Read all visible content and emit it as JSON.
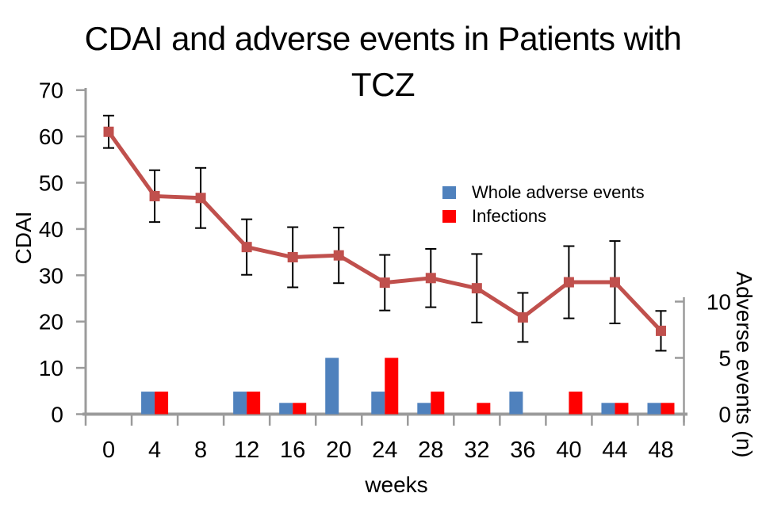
{
  "chart_data": {
    "type": "combo-line-bar",
    "title": "CDAI and adverse events in Patients with TCZ",
    "categories": [
      0,
      4,
      8,
      12,
      16,
      20,
      24,
      28,
      32,
      36,
      40,
      44,
      48
    ],
    "x_label": "weeks",
    "left_axis": {
      "label": "CDAI",
      "min": 0,
      "max": 70,
      "ticks": [
        0,
        10,
        20,
        30,
        40,
        50,
        60,
        70
      ]
    },
    "right_axis": {
      "label": "Adverse events (n)",
      "min": 0,
      "max": 10,
      "ticks": [
        0,
        5,
        10
      ]
    },
    "line_series": {
      "name": "CDAI",
      "axis": "left",
      "color": "#c0504d",
      "marker": "square",
      "values": [
        61,
        47.1,
        46.7,
        36.1,
        33.9,
        34.3,
        28.4,
        29.4,
        27.2,
        20.9,
        28.5,
        28.5,
        18
      ],
      "error_bars": [
        3.5,
        5.6,
        6.5,
        6.0,
        6.5,
        6.0,
        6.0,
        6.3,
        7.4,
        5.3,
        7.8,
        8.9,
        4.3
      ]
    },
    "bar_series": [
      {
        "name": "Whole adverse events",
        "axis": "right",
        "color": "#4f81bd",
        "values": [
          0,
          2,
          0,
          2,
          1,
          5,
          2,
          1,
          0,
          2,
          0,
          1,
          1
        ]
      },
      {
        "name": "Infections",
        "axis": "right",
        "color": "#ff0000",
        "values": [
          0,
          2,
          0,
          2,
          1,
          0,
          5,
          2,
          1,
          0,
          2,
          1,
          1
        ]
      }
    ],
    "legend_position": "inside-upper-right",
    "grid": false,
    "error_bar_color": "#000000",
    "axis_line_color": "#9b9b9b"
  }
}
